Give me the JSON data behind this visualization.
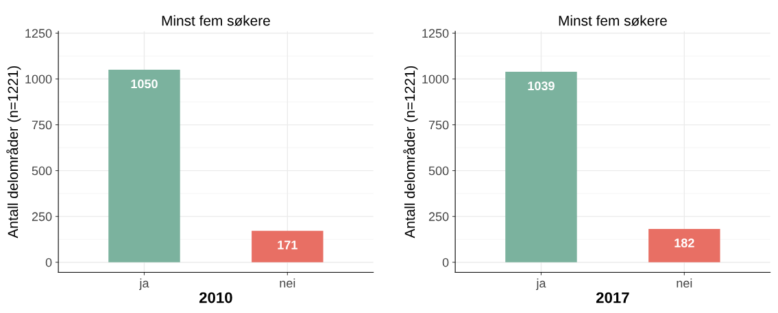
{
  "chart_data": [
    {
      "type": "bar",
      "title": "Minst fem søkere",
      "xlabel": "2010",
      "ylabel": "Antall delområder (n=1221)",
      "categories": [
        "ja",
        "nei"
      ],
      "values": [
        1050,
        171
      ],
      "colors": [
        "#7bb29e",
        "#e86f64"
      ],
      "ylim": [
        -55,
        1260
      ],
      "yticks": [
        0,
        250,
        500,
        750,
        1000,
        1250
      ],
      "grid": true,
      "data_labels": true,
      "legend": false
    },
    {
      "type": "bar",
      "title": "Minst fem søkere",
      "xlabel": "2017",
      "ylabel": "Antall delområder (n=1221)",
      "categories": [
        "ja",
        "nei"
      ],
      "values": [
        1039,
        182
      ],
      "colors": [
        "#7bb29e",
        "#e86f64"
      ],
      "ylim": [
        -55,
        1260
      ],
      "yticks": [
        0,
        250,
        500,
        750,
        1000,
        1250
      ],
      "grid": true,
      "data_labels": true,
      "legend": false
    }
  ]
}
